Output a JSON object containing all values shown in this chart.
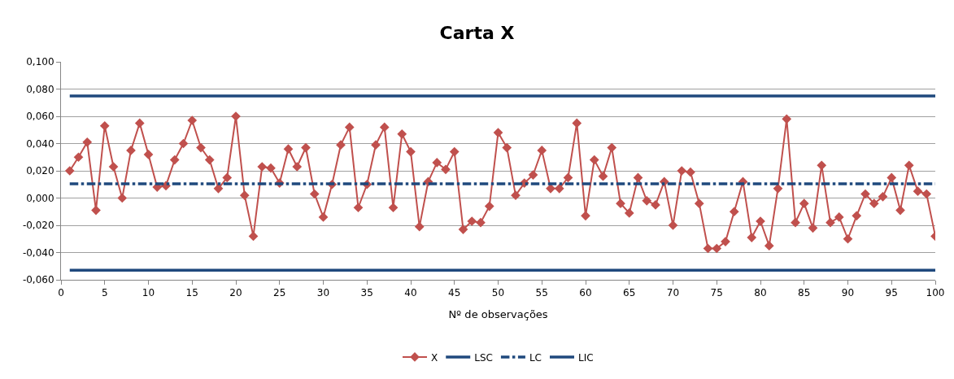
{
  "chart_data": {
    "type": "line",
    "title": "Carta X",
    "xlabel": "Nº de observações",
    "xlim": [
      0,
      100
    ],
    "xticks": [
      0,
      5,
      10,
      15,
      20,
      25,
      30,
      35,
      40,
      45,
      50,
      55,
      60,
      65,
      70,
      75,
      80,
      85,
      90,
      95,
      100
    ],
    "ylim": [
      -0.06,
      0.1
    ],
    "yticks": [
      {
        "value": -0.06,
        "label": "-0,060"
      },
      {
        "value": -0.04,
        "label": "-0,040"
      },
      {
        "value": -0.02,
        "label": "-0,020"
      },
      {
        "value": 0,
        "label": "0,000"
      },
      {
        "value": 0.02,
        "label": "0,020"
      },
      {
        "value": 0.04,
        "label": "0,040"
      },
      {
        "value": 0.06,
        "label": "0,060"
      },
      {
        "value": 0.08,
        "label": "0,080"
      },
      {
        "value": 0.1,
        "label": "0,100"
      }
    ],
    "grid": "y",
    "legend": "bottom",
    "series": [
      {
        "name": "X",
        "color": "#c0504d",
        "marker": "diamond",
        "line_style": "solid",
        "x": [
          1,
          2,
          3,
          4,
          5,
          6,
          7,
          8,
          9,
          10,
          11,
          12,
          13,
          14,
          15,
          16,
          17,
          18,
          19,
          20,
          21,
          22,
          23,
          24,
          25,
          26,
          27,
          28,
          29,
          30,
          31,
          32,
          33,
          34,
          35,
          36,
          37,
          38,
          39,
          40,
          41,
          42,
          43,
          44,
          45,
          46,
          47,
          48,
          49,
          50,
          51,
          52,
          53,
          54,
          55,
          56,
          57,
          58,
          59,
          60,
          61,
          62,
          63,
          64,
          65,
          66,
          67,
          68,
          69,
          70,
          71,
          72,
          73,
          74,
          75,
          76,
          77,
          78,
          79,
          80,
          81,
          82,
          83,
          84,
          85,
          86,
          87,
          88,
          89,
          90,
          91,
          92,
          93,
          94,
          95,
          96,
          97,
          98,
          99,
          100
        ],
        "values": [
          0.02,
          0.03,
          0.041,
          -0.009,
          0.053,
          0.023,
          0.0,
          0.035,
          0.055,
          0.032,
          0.008,
          0.009,
          0.028,
          0.04,
          0.057,
          0.037,
          0.028,
          0.007,
          0.015,
          0.06,
          0.002,
          -0.028,
          0.023,
          0.022,
          0.011,
          0.036,
          0.023,
          0.037,
          0.003,
          -0.014,
          0.01,
          0.039,
          0.052,
          -0.007,
          0.01,
          0.039,
          0.052,
          -0.007,
          0.047,
          0.034,
          -0.021,
          0.012,
          0.026,
          0.021,
          0.034,
          -0.023,
          -0.017,
          -0.018,
          -0.006,
          0.048,
          0.037,
          0.002,
          0.011,
          0.017,
          0.035,
          0.007,
          0.007,
          0.015,
          0.055,
          -0.013,
          0.028,
          0.016,
          0.037,
          -0.004,
          -0.011,
          0.015,
          -0.002,
          -0.005,
          0.012,
          -0.02,
          0.02,
          0.019,
          -0.004,
          -0.037,
          -0.037,
          -0.032,
          -0.01,
          0.012,
          -0.029,
          -0.017,
          -0.035,
          0.007,
          0.058,
          -0.018,
          -0.004,
          -0.022,
          0.024,
          -0.018,
          -0.014,
          -0.03,
          -0.013,
          0.003,
          -0.004,
          0.001,
          0.015,
          -0.009,
          0.024,
          0.005,
          0.003,
          -0.028
        ]
      },
      {
        "name": "LSC",
        "color": "#1f497d",
        "marker": "none",
        "line_style": "solid",
        "x": [
          1,
          100
        ],
        "values": [
          0.075,
          0.075
        ]
      },
      {
        "name": "LC",
        "color": "#1f497d",
        "marker": "none",
        "line_style": "dashdot",
        "x": [
          1,
          100
        ],
        "values": [
          0.0105,
          0.0105
        ]
      },
      {
        "name": "LIC",
        "color": "#1f497d",
        "marker": "none",
        "line_style": "solid",
        "x": [
          1,
          100
        ],
        "values": [
          -0.053,
          -0.053
        ]
      }
    ]
  }
}
